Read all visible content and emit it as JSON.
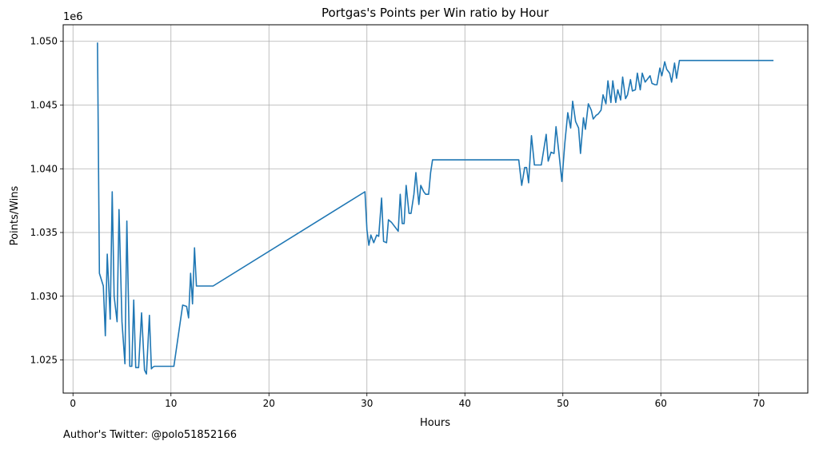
{
  "chart_data": {
    "type": "line",
    "title": "Portgas's Points per Win ratio by Hour",
    "xlabel": "Hours",
    "ylabel": "Points/Wins",
    "y_offset_label": "1e6",
    "xlim": [
      -1,
      75
    ],
    "ylim": [
      1.0224,
      1.0513
    ],
    "x_ticks": [
      0,
      10,
      20,
      30,
      40,
      50,
      60,
      70
    ],
    "y_ticks": [
      1.025,
      1.03,
      1.035,
      1.04,
      1.045,
      1.05
    ],
    "y_tick_labels": [
      "1.025",
      "1.030",
      "1.035",
      "1.040",
      "1.045",
      "1.050"
    ],
    "grid": true,
    "color": "#1f77b4",
    "series": [
      {
        "name": "",
        "x": [
          2.5,
          2.7,
          3.1,
          3.3,
          3.5,
          3.8,
          4.0,
          4.2,
          4.5,
          4.7,
          5.0,
          5.3,
          5.5,
          5.8,
          6.0,
          6.2,
          6.4,
          6.7,
          7.0,
          7.3,
          7.5,
          7.8,
          8.0,
          8.1,
          8.3,
          8.6,
          10.3,
          11.2,
          11.6,
          11.8,
          12.0,
          12.2,
          12.4,
          12.6,
          14.3,
          29.8,
          30.0,
          30.2,
          30.4,
          30.7,
          31.0,
          31.2,
          31.5,
          31.7,
          32.0,
          32.2,
          32.5,
          33.2,
          33.4,
          33.6,
          33.8,
          34.0,
          34.3,
          34.5,
          34.8,
          35.0,
          35.3,
          35.5,
          35.8,
          36.0,
          36.3,
          36.5,
          36.7,
          36.8,
          45.5,
          45.8,
          46.1,
          46.3,
          46.5,
          46.8,
          47.1,
          47.3,
          47.8,
          48.3,
          48.5,
          48.8,
          49.1,
          49.3,
          49.6,
          49.9,
          50.2,
          50.5,
          50.8,
          51.0,
          51.3,
          51.6,
          51.8,
          52.1,
          52.3,
          52.6,
          52.9,
          53.1,
          53.4,
          53.6,
          53.9,
          54.1,
          54.4,
          54.6,
          54.9,
          55.1,
          55.4,
          55.6,
          55.9,
          56.1,
          56.4,
          56.6,
          56.9,
          57.1,
          57.4,
          57.6,
          57.9,
          58.1,
          58.4,
          58.6,
          58.9,
          59.1,
          59.4,
          59.6,
          59.9,
          60.1,
          60.4,
          60.6,
          60.9,
          61.1,
          61.4,
          61.6,
          61.9,
          62.0,
          71.5
        ],
        "y": [
          1.0499,
          1.0318,
          1.0308,
          1.0269,
          1.0333,
          1.0282,
          1.0382,
          1.03,
          1.028,
          1.0368,
          1.028,
          1.0247,
          1.0359,
          1.0245,
          1.0245,
          1.0297,
          1.0244,
          1.0244,
          1.0287,
          1.0242,
          1.0239,
          1.0285,
          1.0243,
          1.0244,
          1.0245,
          1.0245,
          1.0245,
          1.0293,
          1.0292,
          1.0283,
          1.0318,
          1.0294,
          1.0338,
          1.0308,
          1.0308,
          1.0382,
          1.0352,
          1.034,
          1.0348,
          1.0342,
          1.0348,
          1.0347,
          1.0377,
          1.0343,
          1.0342,
          1.036,
          1.0358,
          1.0351,
          1.038,
          1.0357,
          1.0357,
          1.0387,
          1.0365,
          1.0365,
          1.038,
          1.0397,
          1.0372,
          1.0387,
          1.0382,
          1.038,
          1.038,
          1.0397,
          1.0407,
          1.0407,
          1.0407,
          1.0387,
          1.0401,
          1.0401,
          1.0389,
          1.0426,
          1.0403,
          1.0403,
          1.0403,
          1.0427,
          1.0406,
          1.0413,
          1.0412,
          1.0433,
          1.0412,
          1.039,
          1.042,
          1.0444,
          1.0432,
          1.0453,
          1.0437,
          1.0432,
          1.0412,
          1.044,
          1.0431,
          1.0451,
          1.0446,
          1.0439,
          1.0442,
          1.0443,
          1.0446,
          1.0458,
          1.0451,
          1.0469,
          1.0452,
          1.0469,
          1.0452,
          1.0462,
          1.0454,
          1.0472,
          1.0455,
          1.0458,
          1.047,
          1.0461,
          1.0462,
          1.0475,
          1.0462,
          1.0475,
          1.0468,
          1.047,
          1.0473,
          1.0467,
          1.0466,
          1.0466,
          1.0479,
          1.0473,
          1.0484,
          1.0478,
          1.0475,
          1.0468,
          1.0483,
          1.0471,
          1.0485,
          1.0485,
          1.0485
        ]
      }
    ]
  },
  "footnote": "Author's Twitter: @polo51852166"
}
